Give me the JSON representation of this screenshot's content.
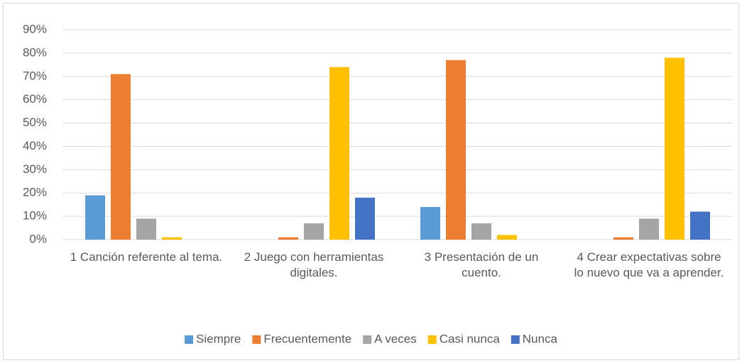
{
  "chart_data": {
    "type": "bar",
    "categories": [
      "1 Canción referente al tema.",
      "2 Juego con herramientas digitales.",
      "3 Presentación de un cuento.",
      "4 Crear expectativas sobre lo nuevo que va a aprender."
    ],
    "series": [
      {
        "name": "Siempre",
        "color": "#5b9bd5",
        "values": [
          19,
          0,
          14,
          0
        ]
      },
      {
        "name": "Frecuentemente",
        "color": "#ed7d31",
        "values": [
          71,
          1,
          77,
          1
        ]
      },
      {
        "name": "A veces",
        "color": "#a5a5a5",
        "values": [
          9,
          7,
          7,
          9
        ]
      },
      {
        "name": "Casi nunca",
        "color": "#ffc000",
        "values": [
          1,
          74,
          2,
          78
        ]
      },
      {
        "name": "Nunca",
        "color": "#4472c4",
        "values": [
          0,
          18,
          0,
          12
        ]
      }
    ],
    "ylim": [
      0,
      90
    ],
    "yticks": [
      {
        "value": 0,
        "label": "0%"
      },
      {
        "value": 10,
        "label": "10%"
      },
      {
        "value": 20,
        "label": "20%"
      },
      {
        "value": 30,
        "label": "30%"
      },
      {
        "value": 40,
        "label": "40%"
      },
      {
        "value": 50,
        "label": "50%"
      },
      {
        "value": 60,
        "label": "60%"
      },
      {
        "value": 70,
        "label": "70%"
      },
      {
        "value": 80,
        "label": "80%"
      },
      {
        "value": 90,
        "label": "90%"
      }
    ],
    "grid": true,
    "legend": "bottom"
  }
}
